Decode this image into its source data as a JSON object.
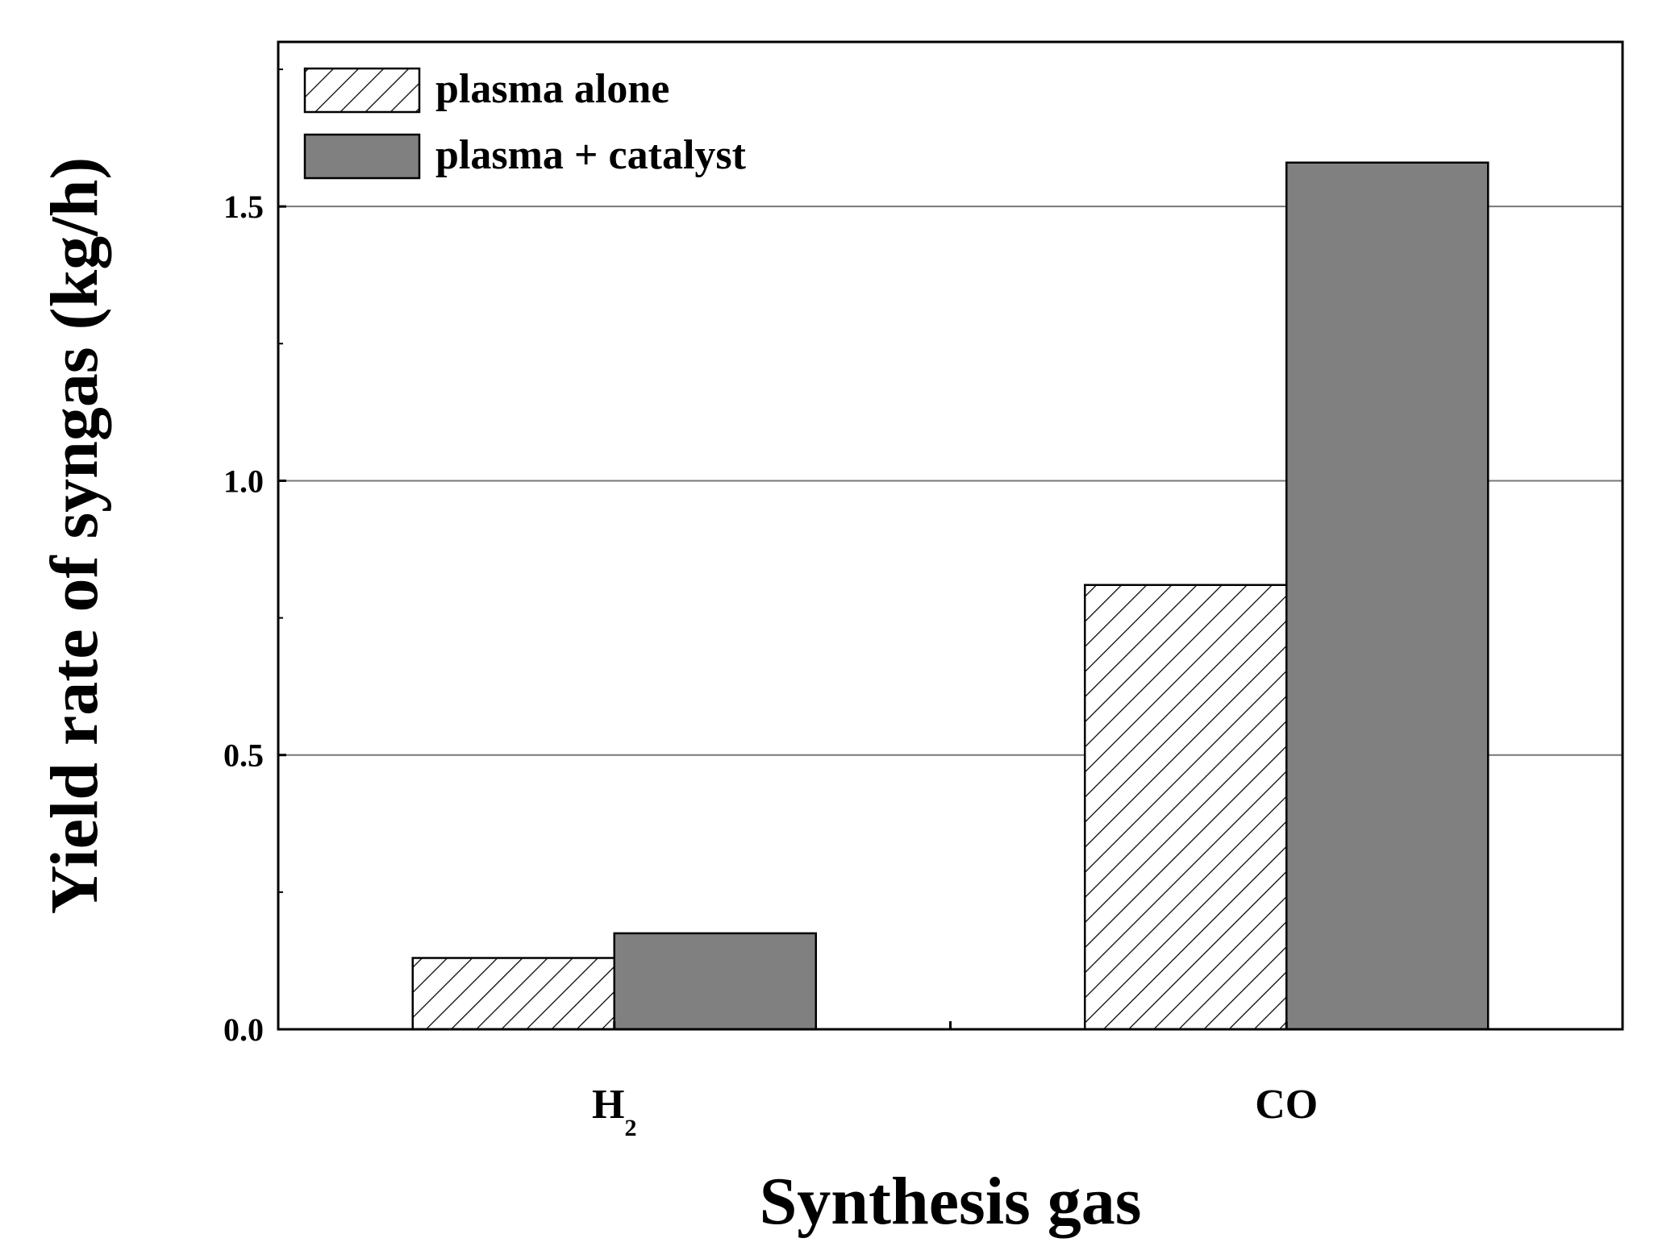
{
  "chart_data": {
    "type": "bar",
    "title": "",
    "xlabel": "Synthesis gas",
    "ylabel": "Yield rate of syngas (kg/h)",
    "ylim": [
      0,
      1.8
    ],
    "yticks": [
      "0.0",
      "0.5",
      "1.0",
      "1.5"
    ],
    "grid": true,
    "legend_position": "top-left",
    "categories": [
      {
        "base": "H",
        "sub": "2"
      },
      {
        "base": "CO",
        "sub": ""
      }
    ],
    "series": [
      {
        "name": "plasma alone",
        "values": [
          0.13,
          0.81
        ],
        "fill": "hatched",
        "color": "#ffffff"
      },
      {
        "name": "plasma + catalyst",
        "values": [
          0.175,
          1.58
        ],
        "fill": "solid",
        "color": "#808080"
      }
    ]
  }
}
